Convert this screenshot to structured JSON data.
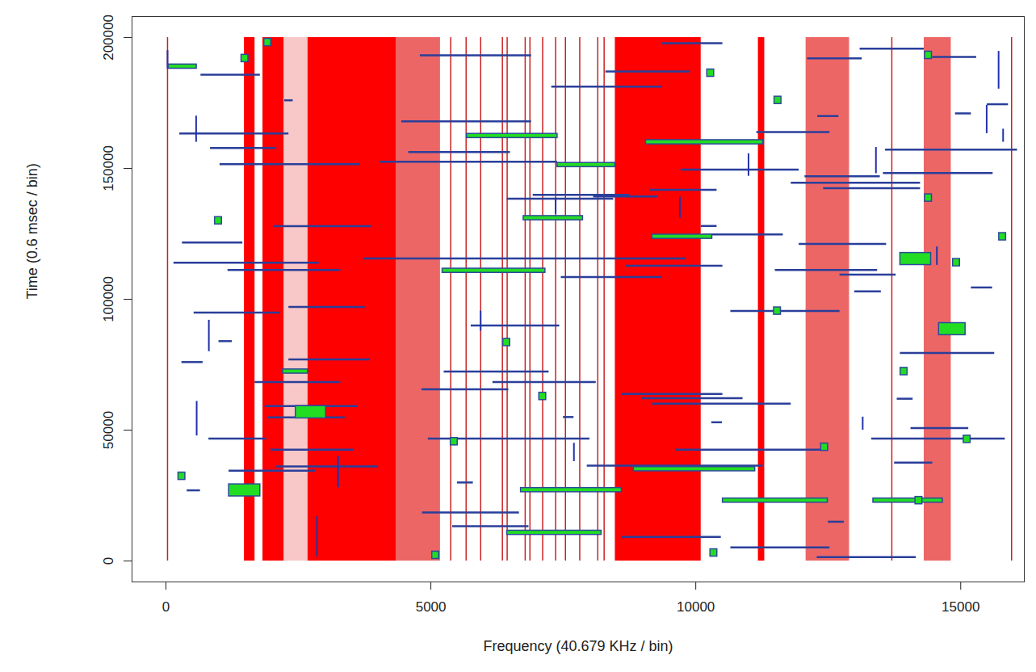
{
  "chart_data": {
    "type": "segments",
    "x_label": "Frequency (40.679 KHz / bin)",
    "y_label": "Time (0.6 msec / bin)",
    "xlim": [
      -640,
      16200
    ],
    "ylim": [
      -8000,
      208000
    ],
    "xticks": [
      0,
      5000,
      10000,
      15000
    ],
    "yticks": [
      0,
      50000,
      100000,
      150000,
      200000
    ],
    "grid": false,
    "band_span": [
      0,
      200000
    ],
    "solid_bands": [
      [
        1480,
        1680
      ],
      [
        1830,
        2230
      ],
      [
        2680,
        4350
      ],
      [
        8480,
        10100
      ],
      [
        11180,
        11300
      ]
    ],
    "dense_speckle_bands": [
      [
        4350,
        5180
      ],
      [
        12080,
        12900
      ],
      [
        14310,
        14820
      ]
    ],
    "sparse_speckle_bands": [
      [
        2240,
        2680
      ]
    ],
    "red_lines": [
      30,
      5375,
      5665,
      5940,
      6350,
      6440,
      6780,
      6870,
      7110,
      7355,
      7540,
      7810,
      8150,
      8270,
      13700,
      15960
    ],
    "horizontal_segments": [
      [
        9370,
        10510,
        197800
      ],
      [
        4800,
        6900,
        193200
      ],
      [
        12110,
        13140,
        192000
      ],
      [
        13100,
        14310,
        195700
      ],
      [
        14470,
        15300,
        192600
      ],
      [
        8300,
        9900,
        187000
      ],
      [
        660,
        1780,
        185800
      ],
      [
        7280,
        9370,
        181200
      ],
      [
        4450,
        6900,
        168000
      ],
      [
        260,
        2320,
        163300
      ],
      [
        11150,
        12530,
        163900
      ],
      [
        840,
        2090,
        157800
      ],
      [
        4580,
        6500,
        156200
      ],
      [
        13580,
        16070,
        157200
      ],
      [
        1020,
        3660,
        151600
      ],
      [
        4040,
        7390,
        152500
      ],
      [
        9720,
        11950,
        149500
      ],
      [
        13540,
        15610,
        148200
      ],
      [
        12060,
        13480,
        147000
      ],
      [
        11800,
        14240,
        144500
      ],
      [
        12410,
        14240,
        142400
      ],
      [
        9140,
        10400,
        141800
      ],
      [
        6930,
        8760,
        139900
      ],
      [
        8070,
        9290,
        139300
      ],
      [
        6440,
        8450,
        138400
      ],
      [
        2030,
        3880,
        127900
      ],
      [
        10130,
        11650,
        124800
      ],
      [
        310,
        1450,
        121700
      ],
      [
        11950,
        13600,
        121100
      ],
      [
        3730,
        9820,
        115600
      ],
      [
        150,
        2890,
        114000
      ],
      [
        8680,
        10510,
        112800
      ],
      [
        1170,
        3300,
        111200
      ],
      [
        11500,
        13430,
        111200
      ],
      [
        7460,
        9370,
        108500
      ],
      [
        12720,
        13780,
        109400
      ],
      [
        2320,
        3760,
        97100
      ],
      [
        10660,
        12720,
        95500
      ],
      [
        530,
        2160,
        94900
      ],
      [
        5760,
        7430,
        90000
      ],
      [
        2320,
        3850,
        77000
      ],
      [
        13860,
        15640,
        79500
      ],
      [
        5250,
        7230,
        72400
      ],
      [
        1680,
        3300,
        68400
      ],
      [
        6170,
        8120,
        68400
      ],
      [
        4830,
        6470,
        65600
      ],
      [
        8600,
        10510,
        63800
      ],
      [
        8980,
        10890,
        62200
      ],
      [
        9180,
        11800,
        60100
      ],
      [
        1870,
        3620,
        59200
      ],
      [
        1930,
        3380,
        54900
      ],
      [
        14060,
        15150,
        50800
      ],
      [
        810,
        1900,
        46800
      ],
      [
        4950,
        8000,
        46800
      ],
      [
        1980,
        3550,
        42500
      ],
      [
        9620,
        12490,
        42500
      ],
      [
        13320,
        15840,
        46800
      ],
      [
        13750,
        14470,
        37600
      ],
      [
        7950,
        11270,
        36400
      ],
      [
        2090,
        4010,
        36100
      ],
      [
        1190,
        2820,
        34500
      ],
      [
        4840,
        6670,
        18500
      ],
      [
        5410,
        6850,
        13300
      ],
      [
        8600,
        10480,
        9200
      ],
      [
        10660,
        12530,
        5200
      ],
      [
        12290,
        14160,
        1500
      ],
      [
        2240,
        2400,
        176000
      ],
      [
        12300,
        12700,
        170000
      ],
      [
        14900,
        15200,
        171000
      ],
      [
        15500,
        15900,
        174500
      ],
      [
        10100,
        10400,
        128000
      ],
      [
        13000,
        13500,
        103000
      ],
      [
        15200,
        15600,
        104500
      ],
      [
        1000,
        1250,
        84000
      ],
      [
        5500,
        5800,
        30000
      ],
      [
        300,
        700,
        76000
      ],
      [
        13800,
        14100,
        62000
      ],
      [
        10300,
        10500,
        53000
      ],
      [
        7500,
        7700,
        55000
      ],
      [
        12500,
        12800,
        15000
      ],
      [
        400,
        650,
        27000
      ]
    ],
    "vertical_segments": [
      [
        30,
        188000,
        195000
      ],
      [
        580,
        47800,
        61000
      ],
      [
        2850,
        1500,
        17000
      ],
      [
        7355,
        132500,
        138700
      ],
      [
        5940,
        87800,
        95500
      ],
      [
        10995,
        147000,
        155600
      ],
      [
        15490,
        163300,
        174100
      ],
      [
        15715,
        180300,
        194700
      ],
      [
        810,
        80000,
        92000
      ],
      [
        13400,
        148000,
        158000
      ],
      [
        15800,
        160000,
        165000
      ],
      [
        3250,
        28000,
        40000
      ],
      [
        7700,
        38000,
        45000
      ],
      [
        9700,
        131000,
        139000
      ],
      [
        14550,
        113000,
        120000
      ],
      [
        13150,
        50000,
        55000
      ],
      [
        570,
        160000,
        170000
      ]
    ],
    "green_boxes": [
      [
        1190,
        1780,
        24700,
        29300
      ],
      [
        2450,
        3020,
        54500,
        59200
      ],
      [
        13860,
        14440,
        113100,
        117700
      ],
      [
        14590,
        15090,
        86300,
        90900
      ],
      [
        5680,
        7390,
        161600,
        163200
      ],
      [
        9060,
        11270,
        159200,
        160800
      ],
      [
        7390,
        8480,
        150500,
        152100
      ],
      [
        6750,
        7870,
        130200,
        131800
      ],
      [
        9180,
        10310,
        123100,
        124700
      ],
      [
        5220,
        7160,
        110100,
        111700
      ],
      [
        8830,
        11120,
        34300,
        35900
      ],
      [
        6700,
        8600,
        26300,
        27900
      ],
      [
        10510,
        12490,
        22300,
        23900
      ],
      [
        13350,
        14660,
        22300,
        23900
      ],
      [
        6440,
        8220,
        10000,
        11600
      ],
      [
        50,
        580,
        188100,
        189700
      ],
      [
        2210,
        2680,
        71600,
        73200
      ],
      [
        1425,
        1555,
        190600,
        193400
      ],
      [
        1855,
        1985,
        196700,
        199500
      ],
      [
        925,
        1055,
        128600,
        131400
      ],
      [
        5025,
        5155,
        800,
        3600
      ],
      [
        6365,
        6495,
        82100,
        84900
      ],
      [
        7045,
        7175,
        61500,
        64300
      ],
      [
        10215,
        10345,
        185000,
        187800
      ],
      [
        10275,
        10405,
        1700,
        4500
      ],
      [
        235,
        365,
        31000,
        33800
      ],
      [
        13865,
        13995,
        71000,
        73800
      ],
      [
        14325,
        14455,
        191800,
        194600
      ],
      [
        14325,
        14455,
        137300,
        140100
      ],
      [
        14855,
        14985,
        112600,
        115400
      ],
      [
        15725,
        15855,
        122500,
        125300
      ],
      [
        5375,
        5505,
        44200,
        47000
      ],
      [
        11485,
        11615,
        174600,
        177400
      ],
      [
        14145,
        14275,
        21700,
        24500
      ],
      [
        15055,
        15185,
        45100,
        47900
      ],
      [
        11475,
        11605,
        94100,
        96900
      ],
      [
        12365,
        12495,
        42100,
        44900
      ]
    ]
  }
}
